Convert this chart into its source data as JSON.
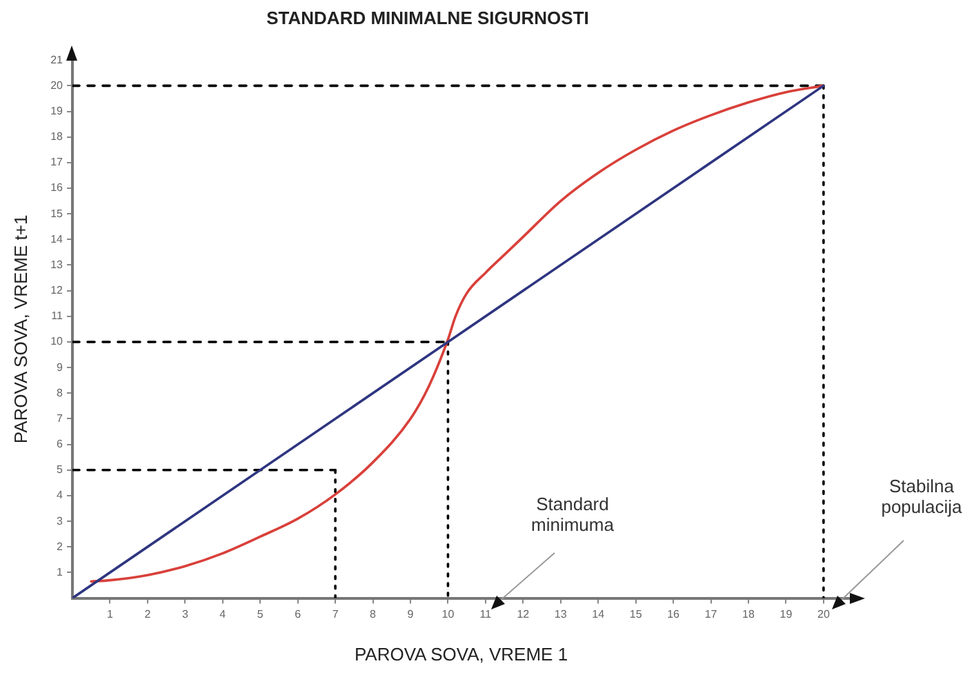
{
  "chart_data": {
    "type": "line",
    "title": "STANDARD MINIMALNE SIGURNOSTI",
    "xlabel": "PAROVA SOVA, VREME 1",
    "ylabel": "PAROVA SOVA, VREME t+1",
    "xlim": [
      0,
      20.7
    ],
    "ylim": [
      0,
      21
    ],
    "xticks": [
      1,
      2,
      3,
      4,
      5,
      6,
      7,
      8,
      9,
      10,
      11,
      12,
      13,
      14,
      15,
      16,
      17,
      18,
      19,
      20
    ],
    "yticks": [
      1,
      2,
      3,
      4,
      5,
      6,
      7,
      8,
      9,
      10,
      11,
      12,
      13,
      14,
      15,
      16,
      17,
      18,
      19,
      20,
      21
    ],
    "grid": false,
    "legend": false,
    "marker": "none",
    "series": [
      {
        "type": "line",
        "color": "#2e3580",
        "line_style": "solid",
        "x": [
          0,
          20
        ],
        "values": [
          0,
          20
        ]
      },
      {
        "type": "line",
        "color": "#d9403a",
        "line_style": "solid",
        "x": [
          0.5,
          1,
          2,
          3,
          4,
          5,
          6,
          7,
          8,
          9,
          9.5,
          10,
          10.2,
          10.5,
          11,
          11.5,
          12,
          13,
          14,
          15,
          16,
          17,
          18,
          19,
          20
        ],
        "values": [
          0.65,
          0.7,
          0.9,
          1.25,
          1.75,
          2.4,
          3.1,
          4.05,
          5.3,
          7,
          8.3,
          10.1,
          11,
          11.9,
          12.7,
          13.4,
          14.1,
          15.5,
          16.6,
          17.5,
          18.25,
          18.85,
          19.35,
          19.75,
          20
        ]
      },
      {
        "type": "line",
        "color": "#000000",
        "line_style": "dashed",
        "x": [
          0,
          7
        ],
        "values": [
          5,
          5
        ]
      },
      {
        "type": "line",
        "color": "#000000",
        "line_style": "dotted",
        "x": [
          7,
          7
        ],
        "values": [
          5,
          0
        ]
      },
      {
        "type": "line",
        "color": "#000000",
        "line_style": "dashed",
        "x": [
          0,
          10
        ],
        "values": [
          10,
          10
        ]
      },
      {
        "type": "line",
        "color": "#000000",
        "line_style": "dotted",
        "x": [
          10,
          10
        ],
        "values": [
          10,
          0
        ]
      },
      {
        "type": "line",
        "color": "#000000",
        "line_style": "dashed",
        "x": [
          0,
          20
        ],
        "values": [
          20,
          20
        ]
      },
      {
        "type": "line",
        "color": "#000000",
        "line_style": "dotted",
        "x": [
          20,
          20
        ],
        "values": [
          20,
          0
        ]
      }
    ],
    "annotations": [
      "Standard minimuma",
      "Stabilna populacija"
    ]
  }
}
